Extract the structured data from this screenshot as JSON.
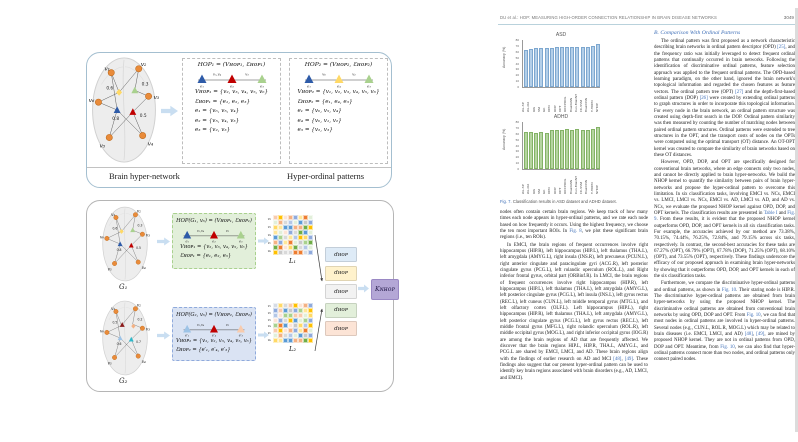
{
  "header": {
    "running_title": "DU et al.: HOP: MEASURING HIGH-ORDER CONNECTION RELATIONSHIP IN BRAIN DISEASE NETWORKS",
    "page_number": "3049"
  },
  "figure": {
    "nodes": [
      "v₁",
      "v₂",
      "v₃",
      "v₄",
      "v₅",
      "v₆"
    ],
    "top": {
      "brain_label": "Brain hyper-network",
      "patterns_label": "Hyper-ordinal patterns",
      "weights": [
        "0.6",
        "0.3",
        "0.8",
        "0.5"
      ],
      "hop1": {
        "title": "HOP₁ = (Vʜᴏᴘ₁, Ɛʜᴏᴘ₁)",
        "lines": [
          "Vʜᴏᴘ₁ = {v₂, v₃, v₄, v₅, v₆}",
          "Ɛʜᴏᴘ₁ = {e₁, e₂, e₃}",
          "e₁ = {v₆, v₅, v₄}",
          "e₂ = {v₅, v₄, v₃}",
          "e₃ = {v₂, v₃}"
        ]
      },
      "hop2": {
        "title": "HOP₂ = (Vʜᴏᴘ₂, Ɛʜᴏᴘ₂)",
        "lines": [
          "Vʜᴏᴘ₂ = {v₁, v₂, v₃, v₄, v₅, v₆}",
          "Ɛʜᴏᴘ₂ = {e₁, e₄, e₃}",
          "e₁ = {v₆, v₅, v₄}",
          "e₄ = {v₆, v₁, v₂}",
          "e₃ = {v₂, v₃}"
        ]
      }
    },
    "motifs": {
      "hop1": {
        "tri_colors": [
          "#2e5ba8",
          "#c00000",
          "#a9d18e"
        ],
        "top_labels": [
          "v₅,v₄",
          "v₃"
        ],
        "edge_labels": [
          "e₁",
          "e₂",
          "e₃"
        ]
      },
      "hop2": {
        "tri_colors": [
          "#2e5ba8",
          "#ffd966",
          "#a9d18e"
        ],
        "top_labels": [
          "v₆",
          "v₂"
        ],
        "edge_labels": [
          "e₁",
          "e₄",
          "e₃"
        ]
      },
      "g1": {
        "tri_colors": [
          "#2e5ba8",
          "#c00000",
          "#a9d18e"
        ],
        "top_labels": [
          "v₅,v₄",
          "v₃"
        ],
        "edge_labels": [
          "e₁",
          "e₂",
          "e₃"
        ]
      },
      "g2": {
        "tri_colors": [
          "#9dc3e6",
          "#c00000",
          "#f8cbad"
        ],
        "top_labels": [
          "v₅,v₄",
          "v₃"
        ],
        "edge_labels": [
          "e′₁",
          "e′₄",
          "e′₃"
        ]
      }
    },
    "bottom": {
      "g1_label": "G₁",
      "g2_label": "G₂",
      "g1_weights": [
        "0.6",
        "0.3",
        "0.8",
        "0.5"
      ],
      "g2_weights": [
        "0.5",
        "0.2",
        "0.6",
        "0.7"
      ],
      "box1": {
        "title": "HOP(G₁, v₆) = (Vʜᴏᴘ₁, Ɛʜᴏᴘ₁)",
        "lines": [
          "Vʜᴏᴘ₁ = {v₂, v₃, v₄, v₅, v₆}",
          "Ɛʜᴏᴘ₁ = {e₁, e₂, e₃}"
        ]
      },
      "box2": {
        "title": "HOP(G₂, v₆) = (Vʜᴏᴘ₂, Ɛʜᴏᴘ₂)",
        "lines": [
          "Vʜᴏᴘ₂ = {v₁, v₂, v₃, v₄, v₅, v₆}",
          "Ɛʜᴏᴘ₂ = {e′₁, e′₄, e′₃}"
        ]
      },
      "l1_label": "L₁",
      "l2_label": "L₂",
      "l1_rows": [
        "v₂",
        "v₃",
        "v₄",
        "v₅",
        "v₆"
      ],
      "l2_rows": [
        "v₁",
        "v₂",
        "v₃",
        "v₄",
        "v₅",
        "v₆"
      ],
      "d_label": "dʜᴏᴘ",
      "k_label": "Kɴʜᴏᴘ",
      "d_colors": [
        "#deebf7",
        "#fff2cc",
        "#f2f2f2",
        "#e2efda",
        "#fce4d6"
      ],
      "matrix_palette": [
        "#f4b183",
        "#ffd966",
        "#a9d18e",
        "#8faadc",
        "#d9d9d9",
        "#70ad47",
        "#ffe699",
        "#f8cbad",
        "#b4c7e7",
        "#ed7d31",
        "#ffc000",
        "#5b9bd5",
        "#e2efda",
        "#fce4d6",
        "#d6dce5",
        "#c9c9c9"
      ]
    }
  },
  "chart_data": [
    {
      "type": "bar",
      "title": "ASD",
      "ylabel": "Accuracy (%)",
      "xlabel": "",
      "ylim": [
        0,
        80
      ],
      "yticks": [
        0,
        10,
        20,
        30,
        40,
        50,
        60,
        70,
        80
      ],
      "grid": false,
      "legend": "none",
      "bar_fill": "#b3cfe9",
      "bar_stroke": "#7da7cf",
      "categories": [
        "WL-SP",
        "WL-OA",
        "RW",
        "SM",
        "GK",
        "OPD",
        "DOP",
        "OPT",
        "DIFFPOOL",
        "BrainGNN",
        "Con-BrainNT",
        "FC-SVM",
        "BrainCNN",
        "T-HOPD",
        "NHOP"
      ],
      "values": [
        63.2,
        65.0,
        66.1,
        66.5,
        65.3,
        66.4,
        67.0,
        67.3,
        68.0,
        68.2,
        67.5,
        68.0,
        68.3,
        69.0,
        73.4
      ]
    },
    {
      "type": "bar",
      "title": "ADHD",
      "ylabel": "Accuracy (%)",
      "xlabel": "",
      "ylim": [
        0,
        80
      ],
      "yticks": [
        0,
        10,
        20,
        30,
        40,
        50,
        60,
        70,
        80
      ],
      "grid": false,
      "legend": "none",
      "bar_fill": "#b5d5a0",
      "bar_stroke": "#83b266",
      "categories": [
        "WL-SP",
        "WL-OA",
        "RW",
        "SM",
        "GK",
        "OPD",
        "DOP",
        "OPT",
        "DIFFPOOL",
        "BrainGNN",
        "Con-BrainNT",
        "FC-SVM",
        "BrainCNN",
        "T-HOPD",
        "NHOP"
      ],
      "values": [
        62.5,
        62.8,
        61.5,
        62.4,
        60.8,
        65.5,
        66.2,
        65.8,
        67.5,
        65.9,
        67.8,
        66.5,
        65.7,
        66.8,
        71.2
      ]
    }
  ],
  "right_page": {
    "left_column": {
      "caption_label": "Fig. 7.",
      "caption_text": "Classification results in ASD dataset and ADHD dataset.",
      "paragraphs": [
        "nodes often contain certain brain regions. We keep track of how many times each node appears in hyper-ordinal patterns, and we rate each node based on how frequently it occurs. Using the highest frequency, we choose the ten most important ROIs. In Fig. 8, we plot these significant brain regions (i.e., ten ROIs).",
        "In EMCI, the brain regions of frequent occurrences involve right hippocampus (HIP.R), left hippocampus (HIP.L), left thalamus (THA.L), left amygdala (AMYG.L), right insula (INS.R), left precuneus (PCUN.L), right anterior cingulate and paracingulate gyri (ACG.R), left posterior cingulate gyrus (PCG.L), left rolandic operculum (ROL.L), and Right inferior frontal gyrus, orbital part (ORBinf.R). In LMCI, the brain regions of frequent occurrences involve right hippocampus (HIP.R), left hippocampus (HIP.L), left thalamus (THA.L), left amygdala (AMYG.L), left posterior cingulate gyrus (PCG.L), left insula (INS.L), left gyrus rectus (REC.L), left cuneus (CUN.L), left middle temporal gyrus (MTG.L), and left olfactory cortex (OLF.L). Left hippocampus (HIP.L), right hippocampus (HIP.R), left thalamus (THA.L), left amygdala (AMYG.L), left posterior cingulate gyrus (PCG.L), left gyrus rectus (REC.L), left middle frontal gyrus (MFG.L), right rolandic operculum (ROL.R), left middle occipital gyrus (MOG.L), and right inferior occipital gyrus (IOG.R) are among the brain regions of AD that are frequently affected. We discover that the brain regions HIP.L, HIP.R, THA.L, AMYG.L, and PCG.L are shared by EMCI, LMCI, and AD. These brain regions align with the findings of earlier research on AD and MCI [48], [49]. These findings also suggest that our present hyper-ordinal pattern can be used to identify key brain regions associated with brain disorders (e.g., AD, LMCI, and EMCI)."
      ]
    },
    "right_column": {
      "section_heading": "B. Comparison With Ordinal Patterns",
      "paragraphs": [
        "The ordinal pattern was first proposed as a network characteristic describing brain networks in ordinal pattern descriptor (OPD) [25], and the frequency ratio was initially leveraged to detect frequent ordinal patterns that continually occurred in brain networks. Following the identification of discriminative ordinal patterns, feature selection approach was applied to the frequent ordinal patterns. The OPD-based learning paradigm, on the other hand, ignored the brain network's topological information and regarded the chosen features as feature vectors. The ordinal pattern tree (OPT) [27] and the depth-first-based ordinal pattern (DOP) [26] were created by extending ordinal patterns to graph structures in order to incorporate this topological information. For every node in the brain network, an ordinal pattern structure was created using depth-first search in the DOP. Ordinal pattern similarity was then measured by counting the number of matching nodes between paired ordinal pattern structures. Ordinal patterns were extended to tree structures in the OPT, and the transport costs of nodes on the OPTs were computed using the optimal transport (OT) distance. An OT-OPT kernel was created to compare the similarity of brain networks based on these OT distances.",
        "However, OPD, DOP, and OPT are specifically designed for conventional brain networks, where an edge connects only two nodes, and cannot be directly applied to brain hyper-networks. We build the NHOP kernel to quantify the similarity between pairs of brain hyper-networks and propose the hyper-ordinal pattern to overcome this limitation. In six classification tasks, involving EMCI vs. NCs, EMCI vs. LMCI, LMCI vs. NCs, EMCI vs. AD, LMCI vs. AD, and AD vs. NCs, we evaluate the proposed NHOP kernel against OPD, DOP, and OPT kernels. The classification results are presented in Table I and Fig. 9. From these results, it is evident that the proposed NHOP kernel outperforms OPD, DOP, and OPT kernels in all six classification tasks. For example, the accuracies achieved by our method are 73.38%, 70.15%, 74.44%, 76.25%, 72.84%, and 79.15% across six tasks, respectively. In contrast, the second-best accuracies for these tasks are 67.27% (OPT), 66.79% (OPT), 67.78% (DOP), 71.25% (OPT), 68.10% (OPT), and 73.55% (OPT), respectively. These findings underscore the efficacy of our proposed approach in examining brain hyper-networks by showing that it outperforms OPD, DOP, and OPT kernels in each of the six classification tasks.",
        "Furthermore, we compare the discriminative hyper-ordinal patterns and ordinal patterns, as shown in Fig. 10. Their staring node is HIP.R. The discriminative hyper-ordinal patterns are obtained from brain hyper-networks by using the proposed NHOP kernel. The discriminative ordinal patterns are obtained from conventional brain networks by using OPD, DOP and OPT. From Fig. 10, we can find that most nodes in ordinal patterns are involved in hyper-ordinal patterns. Several nodes (e.g., CUN.L, ROL.R, MOG.L) which may be related to brain diseases (i.e. EMCI, LMCI, and AD) [48], [49], are mined by proposed NHOP kernel. They are not in ordinal patterns from OPD, DOP and OPT. Meantime, from Fig. 10, we can also find that hyper-ordinal patterns connect more than two nodes, and ordinal patterns only connect paired nodes."
      ]
    }
  }
}
